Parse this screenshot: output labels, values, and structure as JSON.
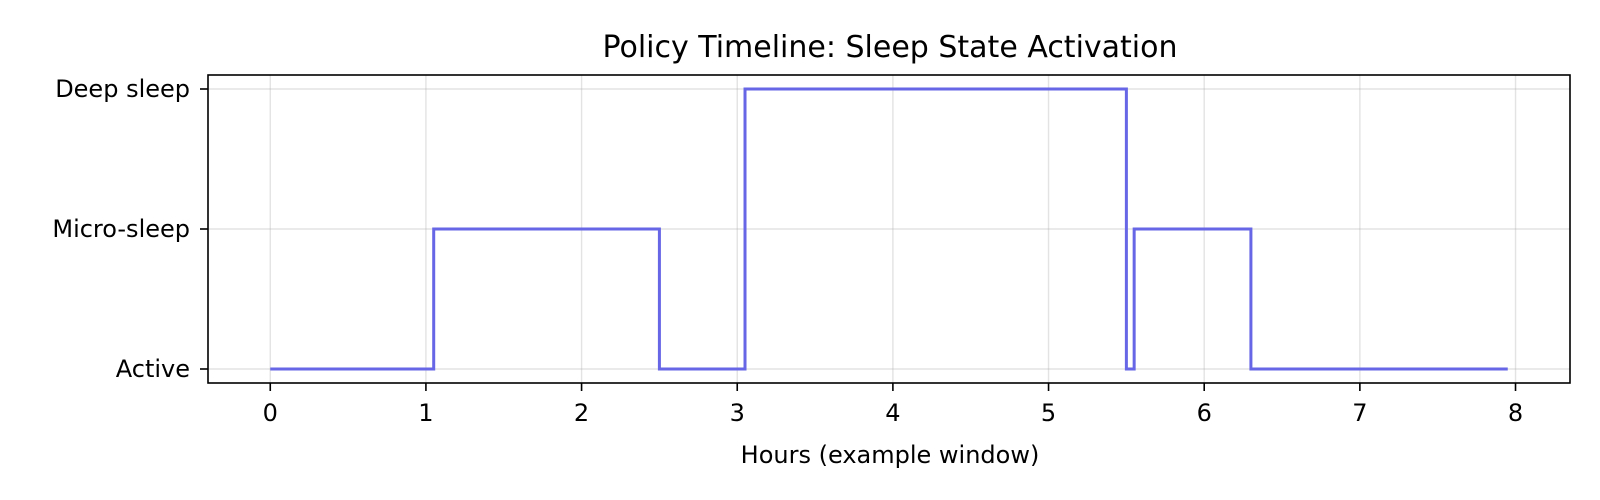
{
  "chart_data": {
    "type": "line",
    "step": "post",
    "title": "Policy Timeline: Sleep State Activation",
    "xlabel": "Hours (example window)",
    "ylabel": "",
    "xlim": [
      -0.4,
      8.35
    ],
    "ylim": [
      -0.1,
      2.1
    ],
    "x_ticks": [
      0,
      1,
      2,
      3,
      4,
      5,
      6,
      7,
      8
    ],
    "y_ticks": [
      {
        "value": 0,
        "label": "Active"
      },
      {
        "value": 1,
        "label": "Micro-sleep"
      },
      {
        "value": 2,
        "label": "Deep sleep"
      }
    ],
    "grid": true,
    "legend": "none",
    "series": [
      {
        "color": "#6666e6",
        "x": [
          0,
          1.05,
          2.5,
          3.05,
          5.5,
          5.55,
          6.3,
          7.95
        ],
        "y": [
          0,
          1,
          0,
          2,
          0,
          1,
          0,
          0
        ]
      }
    ]
  }
}
